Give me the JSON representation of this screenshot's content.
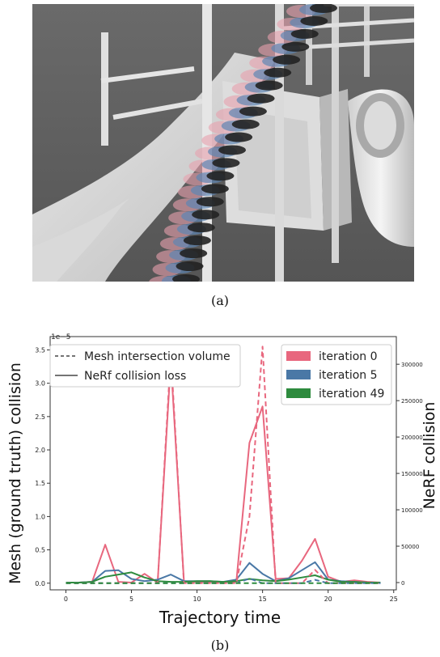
{
  "figure": {
    "caption_a": "(a)",
    "caption_b": "(b)"
  },
  "chart_data": {
    "type": "line",
    "xlabel": "Trajectory time",
    "ylabel_left": "Mesh (ground truth) collision",
    "ylabel_right": "NeRF collision",
    "left_scale_label": "1e−5",
    "xlim": [
      -1.2,
      25.2
    ],
    "ylim_left": [
      -0.1,
      3.7
    ],
    "ylim_right": [
      -10000,
      338000
    ],
    "x_ticks": [
      0,
      5,
      10,
      15,
      20,
      25
    ],
    "y_ticks_left": [
      "0.0",
      "0.5",
      "1.0",
      "1.5",
      "2.0",
      "2.5",
      "3.0",
      "3.5"
    ],
    "y_ticks_right": [
      "0",
      "50000",
      "100000",
      "150000",
      "200000",
      "250000",
      "300000"
    ],
    "grid": false,
    "linestyle_legend": {
      "placement": "top-left",
      "entries": [
        {
          "label": "Mesh intersection volume",
          "style": "dashed"
        },
        {
          "label": "NeRf collision loss",
          "style": "solid"
        }
      ]
    },
    "color_legend": {
      "placement": "top-right",
      "entries": [
        {
          "label": "iteration 0",
          "color": "#e8677e"
        },
        {
          "label": "iteration 5",
          "color": "#4a78a6"
        },
        {
          "label": "iteration 49",
          "color": "#2e8b3e"
        }
      ]
    },
    "x": [
      0,
      1,
      2,
      3,
      4,
      5,
      6,
      7,
      8,
      9,
      10,
      11,
      12,
      13,
      14,
      15,
      16,
      17,
      18,
      19,
      20,
      21,
      22,
      23,
      24
    ],
    "series": [
      {
        "name": "iteration 0",
        "linestyle": "solid",
        "axis": "right",
        "color": "#e8677e",
        "values": [
          0,
          0,
          1000,
          52000,
          1000,
          0,
          12000,
          0,
          304000,
          2000,
          1000,
          1000,
          1000,
          1000,
          192000,
          242000,
          5000,
          6000,
          30000,
          60000,
          8000,
          1000,
          3000,
          1000,
          0
        ]
      },
      {
        "name": "iteration 5",
        "linestyle": "solid",
        "axis": "right",
        "color": "#4a78a6",
        "values": [
          0,
          0,
          1000,
          16000,
          17000,
          5000,
          2000,
          4000,
          11000,
          2000,
          2000,
          2000,
          1000,
          4000,
          27000,
          12000,
          2000,
          6000,
          17000,
          28000,
          4000,
          2000,
          1000,
          0,
          0
        ]
      },
      {
        "name": "iteration 49",
        "linestyle": "solid",
        "axis": "right",
        "color": "#2e8b3e",
        "values": [
          0,
          0,
          1000,
          8000,
          11000,
          14000,
          7000,
          2000,
          1000,
          1000,
          2000,
          2000,
          1000,
          2000,
          5000,
          3000,
          2000,
          4000,
          7000,
          10000,
          4000,
          1000,
          1000,
          0,
          0
        ]
      },
      {
        "name": "iteration 0",
        "linestyle": "dashed",
        "axis": "left",
        "color": "#e8677e",
        "values": [
          0,
          0,
          0,
          0,
          0,
          0,
          0,
          0,
          3.45,
          0,
          0,
          0,
          0,
          0,
          1.0,
          3.55,
          0,
          0,
          0,
          0.2,
          0,
          0,
          0,
          0,
          0
        ]
      },
      {
        "name": "iteration 5",
        "linestyle": "dashed",
        "axis": "left",
        "color": "#4a78a6",
        "values": [
          0,
          0,
          0,
          0,
          0,
          0,
          0,
          0,
          0,
          0,
          0,
          0,
          0,
          0,
          0.07,
          0,
          0,
          0,
          0,
          0.05,
          0,
          0,
          0,
          0,
          0
        ]
      },
      {
        "name": "iteration 49",
        "linestyle": "dashed",
        "axis": "left",
        "color": "#2e8b3e",
        "values": [
          0,
          0,
          0,
          0,
          0,
          0,
          0,
          0,
          0,
          0,
          0,
          0,
          0,
          0,
          0,
          0,
          0,
          0,
          0,
          0,
          0,
          0,
          0,
          0,
          0
        ]
      }
    ]
  }
}
